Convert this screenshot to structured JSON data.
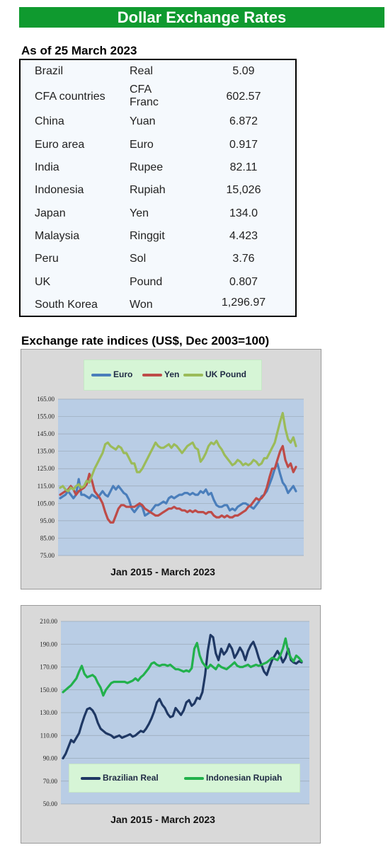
{
  "header": {
    "title": "Dollar Exchange Rates"
  },
  "rates": {
    "as_of": "As of 25 March 2023",
    "rows": [
      {
        "country": "Brazil",
        "currency": "Real",
        "value": "5.09"
      },
      {
        "country": "CFA countries",
        "currency": "CFA\nFranc",
        "value": "602.57"
      },
      {
        "country": "China",
        "currency": "Yuan",
        "value": "6.872"
      },
      {
        "country": "Euro area",
        "currency": "Euro",
        "value": "0.917"
      },
      {
        "country": "India",
        "currency": "Rupee",
        "value": "82.11"
      },
      {
        "country": "Indonesia",
        "currency": "Rupiah",
        "value": "15,026"
      },
      {
        "country": "Japan",
        "currency": "Yen",
        "value": "134.0"
      },
      {
        "country": "Malaysia",
        "currency": "Ringgit",
        "value": "4.423"
      },
      {
        "country": "Peru",
        "currency": "Sol",
        "value": "3.76"
      },
      {
        "country": "UK",
        "currency": "Pound",
        "value": "0.807"
      },
      {
        "country": "South Korea",
        "currency": "Won",
        "value": "1,296.97"
      }
    ]
  },
  "indices": {
    "heading": "Exchange rate indices (US$, Dec 2003=100)"
  },
  "chart_data": [
    {
      "type": "line",
      "title": "",
      "xlabel": "Jan 2015 -  March 2023",
      "ylabel": "",
      "ylim": [
        75,
        165
      ],
      "yticks": [
        "165.00",
        "155.00",
        "145.00",
        "135.00",
        "125.00",
        "115.00",
        "105.00",
        "95.00",
        "85.00",
        "75.00"
      ],
      "legend_position": "top",
      "grid": true,
      "series": [
        {
          "name": "Euro",
          "color": "#4a7ebb",
          "values": [
            108,
            109,
            110,
            112,
            110,
            108,
            110,
            119,
            110,
            110,
            109,
            108,
            110,
            109,
            108,
            110,
            112,
            110,
            109,
            112,
            115,
            113,
            115,
            113,
            111,
            110,
            107,
            102,
            100,
            102,
            104,
            103,
            98,
            99,
            100,
            102,
            104,
            104,
            105,
            106,
            105,
            108,
            109,
            108,
            109,
            110,
            110,
            111,
            111,
            110,
            111,
            110,
            110,
            112,
            111,
            113,
            110,
            111,
            107,
            104,
            103,
            103,
            104,
            104,
            101,
            102,
            101,
            103,
            104,
            105,
            105,
            104,
            103,
            102,
            104,
            106,
            109,
            110,
            112,
            116,
            120,
            125,
            128,
            122,
            117,
            115,
            111,
            113,
            115,
            112
          ]
        },
        {
          "name": "Yen",
          "color": "#be4b48",
          "values": [
            110,
            111,
            112,
            113,
            115,
            113,
            110,
            112,
            113,
            114,
            116,
            122,
            118,
            112,
            110,
            108,
            105,
            100,
            96,
            94,
            94,
            98,
            102,
            104,
            104,
            103,
            103,
            103,
            103,
            104,
            105,
            104,
            102,
            101,
            100,
            99,
            98,
            98,
            99,
            100,
            101,
            102,
            102,
            103,
            102,
            102,
            101,
            101,
            100,
            101,
            100,
            101,
            100,
            100,
            100,
            99,
            100,
            100,
            98,
            97,
            97,
            98,
            97,
            98,
            97,
            97,
            98,
            98,
            99,
            100,
            101,
            103,
            104,
            106,
            108,
            107,
            108,
            110,
            114,
            120,
            125,
            125,
            130,
            135,
            138,
            130,
            126,
            128,
            123,
            126
          ]
        },
        {
          "name": "UK Pound",
          "color": "#9bbb59",
          "values": [
            114,
            115,
            113,
            112,
            114,
            113,
            115,
            116,
            114,
            115,
            118,
            117,
            121,
            125,
            128,
            131,
            134,
            139,
            140,
            138,
            137,
            136,
            138,
            137,
            134,
            134,
            131,
            128,
            128,
            123,
            123,
            125,
            128,
            131,
            134,
            137,
            140,
            138,
            137,
            137,
            138,
            139,
            137,
            139,
            138,
            136,
            134,
            136,
            138,
            139,
            140,
            137,
            136,
            129,
            131,
            134,
            138,
            140,
            139,
            141,
            138,
            136,
            133,
            131,
            129,
            127,
            128,
            130,
            129,
            127,
            128,
            127,
            128,
            130,
            129,
            127,
            128,
            131,
            131,
            134,
            137,
            140,
            146,
            152,
            157,
            148,
            142,
            140,
            143,
            138
          ]
        }
      ]
    },
    {
      "type": "line",
      "title": "",
      "xlabel": "Jan 2015 - March  2023",
      "ylabel": "",
      "ylim": [
        50,
        210
      ],
      "yticks": [
        "210.00",
        "190.00",
        "170.00",
        "150.00",
        "130.00",
        "110.00",
        "90.00",
        "70.00",
        "50.00"
      ],
      "legend_position": "bottom",
      "grid": true,
      "series": [
        {
          "name": "Brazilian Real",
          "color": "#1f3864",
          "values": [
            90,
            94,
            100,
            106,
            104,
            108,
            112,
            120,
            127,
            133,
            134,
            132,
            128,
            121,
            116,
            114,
            112,
            111,
            110,
            108,
            109,
            110,
            108,
            109,
            110,
            111,
            109,
            110,
            112,
            114,
            113,
            116,
            120,
            125,
            131,
            139,
            142,
            137,
            134,
            129,
            126,
            127,
            134,
            131,
            128,
            132,
            139,
            141,
            136,
            138,
            143,
            142,
            148,
            163,
            184,
            198,
            196,
            182,
            176,
            186,
            181,
            184,
            190,
            186,
            178,
            182,
            187,
            183,
            176,
            184,
            189,
            192,
            186,
            178,
            172,
            166,
            163,
            170,
            176,
            180,
            184,
            180,
            174,
            178,
            186,
            176,
            174,
            173,
            175,
            174
          ]
        },
        {
          "name": "Indonesian Rupiah",
          "color": "#22b14c",
          "values": [
            148,
            150,
            152,
            154,
            157,
            160,
            166,
            171,
            164,
            161,
            162,
            163,
            161,
            156,
            152,
            145,
            150,
            153,
            156,
            157,
            157,
            157,
            157,
            157,
            156,
            157,
            158,
            160,
            158,
            161,
            163,
            166,
            169,
            173,
            174,
            172,
            171,
            172,
            172,
            171,
            172,
            170,
            168,
            168,
            167,
            166,
            167,
            166,
            169,
            186,
            191,
            180,
            174,
            171,
            169,
            172,
            170,
            168,
            172,
            170,
            169,
            168,
            170,
            172,
            174,
            171,
            170,
            170,
            171,
            172,
            170,
            171,
            172,
            171,
            172,
            173,
            174,
            176,
            178,
            177,
            176,
            180,
            186,
            195,
            183,
            178,
            175,
            180,
            178,
            175
          ]
        }
      ]
    }
  ]
}
